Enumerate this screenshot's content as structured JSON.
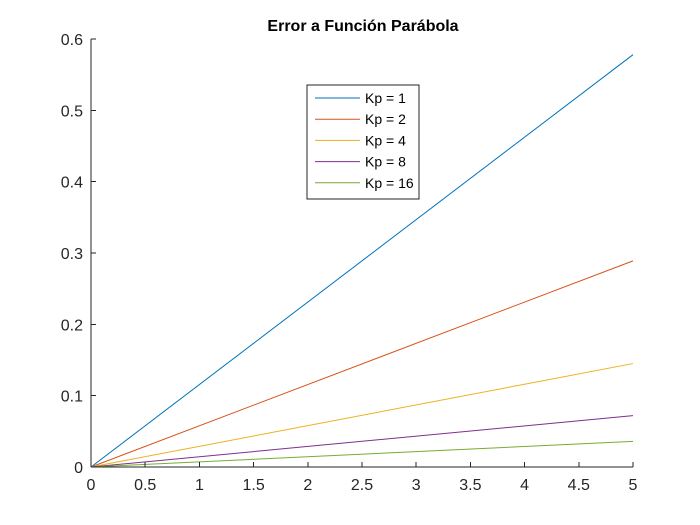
{
  "chart_data": {
    "type": "line",
    "title": "Error a Función Parábola",
    "xlabel": "",
    "ylabel": "",
    "xlim": [
      0,
      5
    ],
    "ylim": [
      0,
      0.6
    ],
    "xticks": [
      "0",
      "0.5",
      "1",
      "1.5",
      "2",
      "2.5",
      "3",
      "3.5",
      "4",
      "4.5",
      "5"
    ],
    "yticks": [
      "0",
      "0.1",
      "0.2",
      "0.3",
      "0.4",
      "0.5",
      "0.6"
    ],
    "grid": false,
    "legend_position": "upper-center",
    "series": [
      {
        "name": "Kp = 1",
        "color": "#0072BD",
        "x": [
          0,
          5
        ],
        "y": [
          0,
          0.578
        ]
      },
      {
        "name": "Kp = 2",
        "color": "#D95319",
        "x": [
          0,
          5
        ],
        "y": [
          0,
          0.289
        ]
      },
      {
        "name": "Kp = 4",
        "color": "#EDB120",
        "x": [
          0,
          5
        ],
        "y": [
          0,
          0.145
        ]
      },
      {
        "name": "Kp = 8",
        "color": "#7E2F8E",
        "x": [
          0,
          5
        ],
        "y": [
          0,
          0.072
        ]
      },
      {
        "name": "Kp = 16",
        "color": "#77AC30",
        "x": [
          0,
          5
        ],
        "y": [
          0,
          0.036
        ]
      }
    ]
  }
}
